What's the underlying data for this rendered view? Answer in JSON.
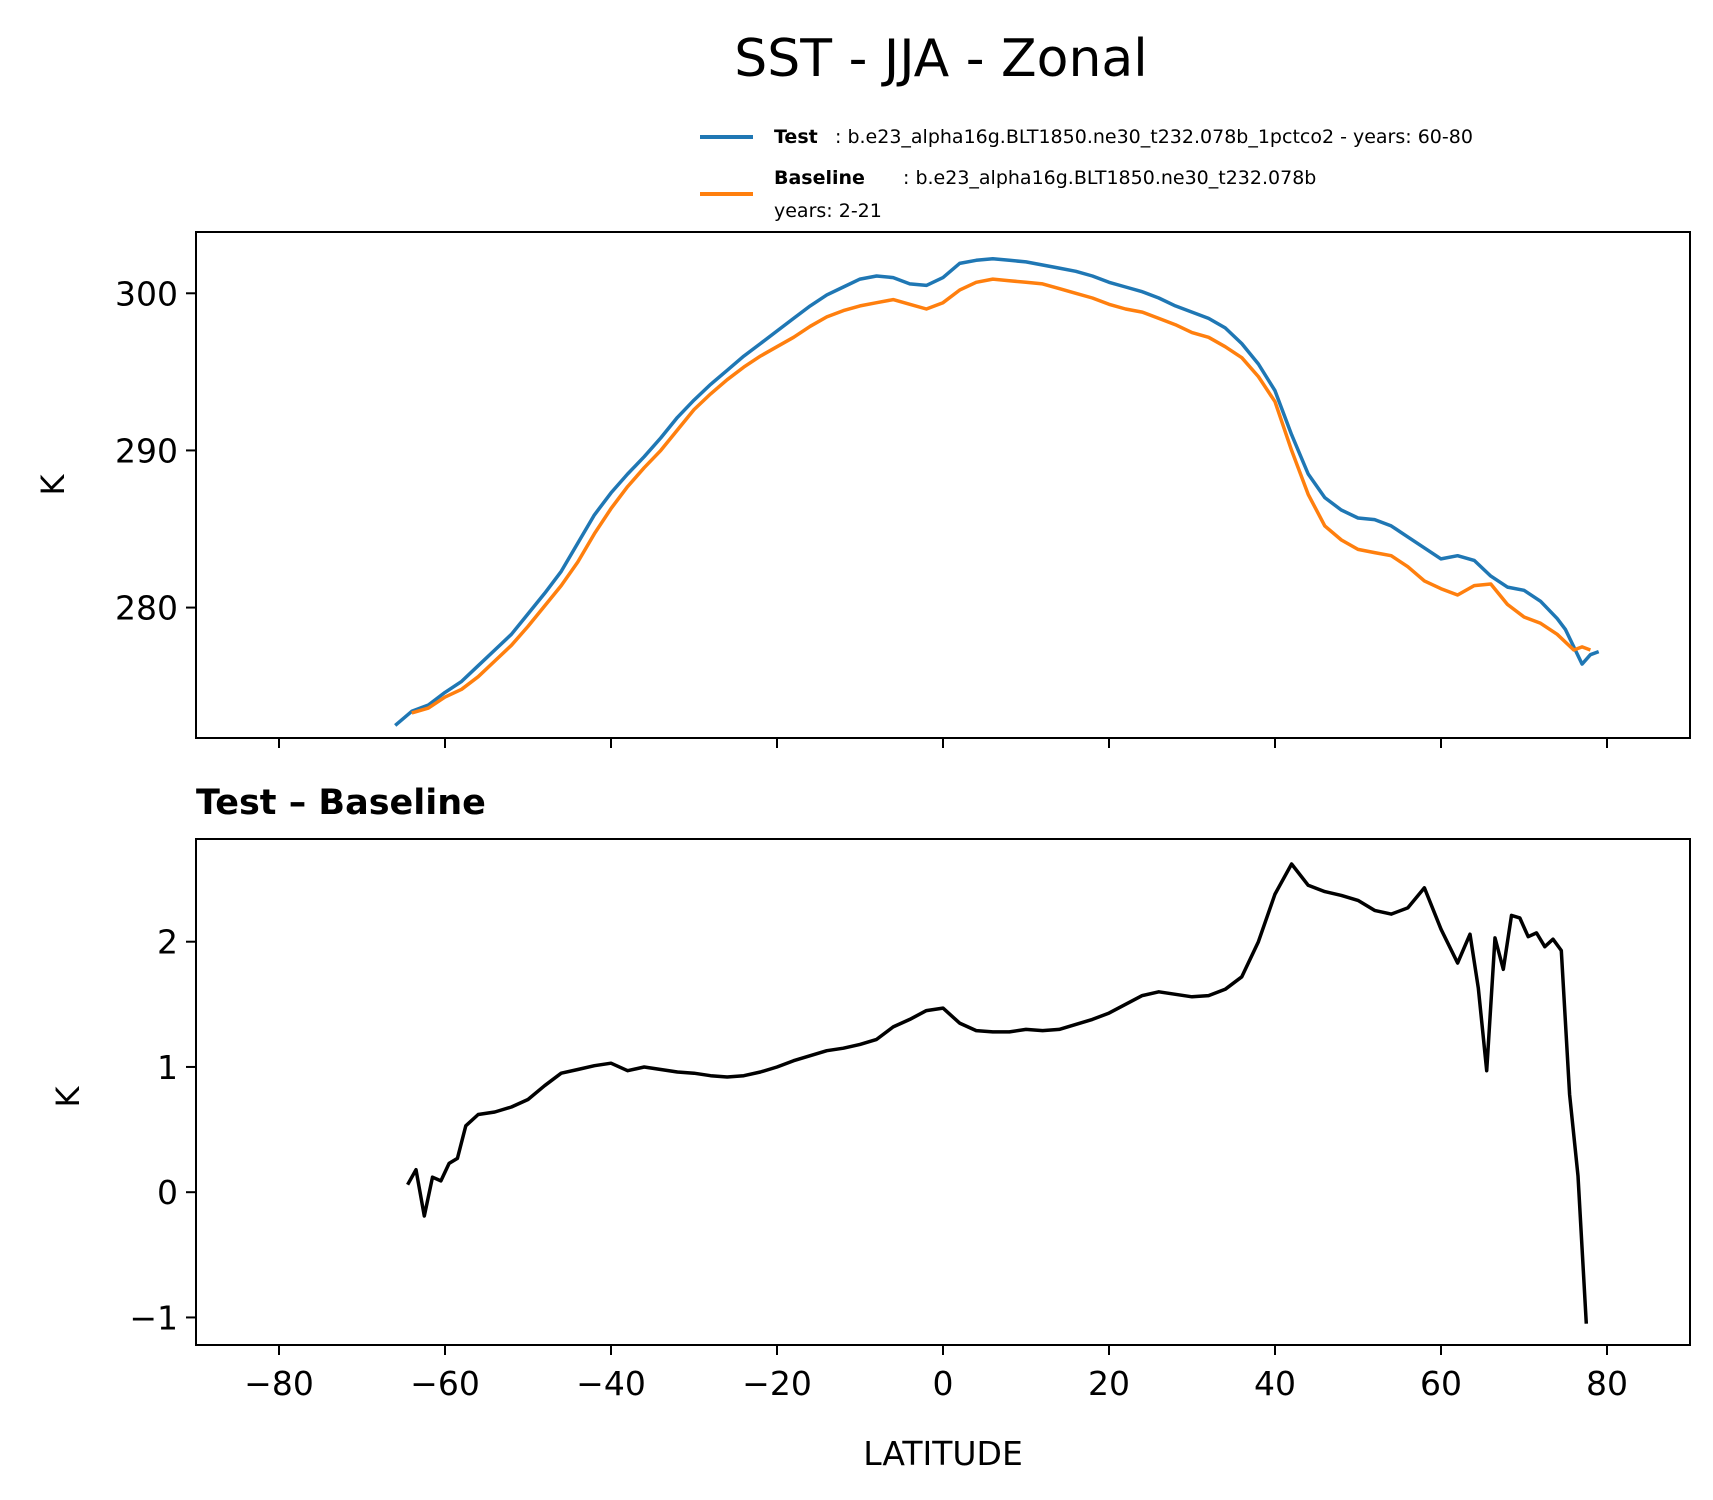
{
  "figure_title": "SST - JJA - Zonal",
  "colors": {
    "test": "#1f77b4",
    "baseline": "#ff7f0e",
    "diff": "#000000",
    "axis": "#000000"
  },
  "legend": {
    "test_label": "Test",
    "test_text": ": b.e23_alpha16g.BLT1850.ne30_t232.078b_1pctco2 - years: 60-80",
    "baseline_label": "Baseline",
    "baseline_text": ": b.e23_alpha16g.BLT1850.ne30_t232.078b",
    "baseline_years": "years: 2-21"
  },
  "chart_data": [
    {
      "type": "line",
      "title": "",
      "xlabel": "",
      "ylabel": "K",
      "xlim": [
        -90,
        90
      ],
      "ylim": [
        271.7,
        303.9
      ],
      "xticks": [
        -80,
        -60,
        -40,
        -20,
        0,
        20,
        40,
        60,
        80
      ],
      "yticks": [
        280,
        290,
        300
      ],
      "ytick_labels": [
        "280",
        "290",
        "300"
      ],
      "series": [
        {
          "name": "Test",
          "x": [
            -66,
            -64,
            -62,
            -60,
            -58,
            -56,
            -54,
            -52,
            -50,
            -48,
            -46,
            -44,
            -42,
            -40,
            -38,
            -36,
            -34,
            -32,
            -30,
            -28,
            -26,
            -24,
            -22,
            -20,
            -18,
            -16,
            -14,
            -12,
            -10,
            -8,
            -6,
            -4,
            -2,
            0,
            2,
            4,
            6,
            8,
            10,
            12,
            14,
            16,
            18,
            20,
            22,
            24,
            26,
            28,
            30,
            32,
            34,
            36,
            38,
            40,
            42,
            44,
            46,
            48,
            50,
            52,
            54,
            56,
            58,
            60,
            62,
            64,
            66,
            68,
            70,
            72,
            74,
            75,
            76,
            77,
            78,
            79
          ],
          "y": [
            272.5,
            273.4,
            273.8,
            274.6,
            275.3,
            276.3,
            277.3,
            278.3,
            279.6,
            280.9,
            282.3,
            284.1,
            285.9,
            287.3,
            288.5,
            289.6,
            290.8,
            292.1,
            293.2,
            294.2,
            295.1,
            296.0,
            296.8,
            297.6,
            298.4,
            299.2,
            299.9,
            300.4,
            300.9,
            301.1,
            301.0,
            300.6,
            300.5,
            301.0,
            301.9,
            302.1,
            302.2,
            302.1,
            302.0,
            301.8,
            301.6,
            301.4,
            301.1,
            300.7,
            300.4,
            300.1,
            299.7,
            299.2,
            298.8,
            298.4,
            297.8,
            296.8,
            295.5,
            293.8,
            291.0,
            288.5,
            287.0,
            286.2,
            285.7,
            285.6,
            285.2,
            284.5,
            283.8,
            283.1,
            283.3,
            283.0,
            282.0,
            281.3,
            281.1,
            280.4,
            279.3,
            278.6,
            277.5,
            276.4,
            277.0,
            277.2
          ]
        },
        {
          "name": "Baseline",
          "x": [
            -64,
            -62,
            -60,
            -58,
            -56,
            -54,
            -52,
            -50,
            -48,
            -46,
            -44,
            -42,
            -40,
            -38,
            -36,
            -34,
            -32,
            -30,
            -28,
            -26,
            -24,
            -22,
            -20,
            -18,
            -16,
            -14,
            -12,
            -10,
            -8,
            -6,
            -4,
            -2,
            0,
            2,
            4,
            6,
            8,
            10,
            12,
            14,
            16,
            18,
            20,
            22,
            24,
            26,
            28,
            30,
            32,
            34,
            36,
            38,
            40,
            42,
            44,
            46,
            48,
            50,
            52,
            54,
            56,
            58,
            60,
            62,
            64,
            66,
            68,
            70,
            72,
            74,
            76,
            77,
            78
          ],
          "y": [
            273.3,
            273.6,
            274.3,
            274.8,
            275.6,
            276.6,
            277.6,
            278.8,
            280.1,
            281.4,
            282.9,
            284.7,
            286.3,
            287.7,
            288.9,
            290.0,
            291.3,
            292.6,
            293.6,
            294.5,
            295.3,
            296.0,
            296.6,
            297.2,
            297.9,
            298.5,
            298.9,
            299.2,
            299.4,
            299.6,
            299.3,
            299.0,
            299.4,
            300.2,
            300.7,
            300.9,
            300.8,
            300.7,
            300.6,
            300.3,
            300.0,
            299.7,
            299.3,
            299.0,
            298.8,
            298.4,
            298.0,
            297.5,
            297.2,
            296.6,
            295.9,
            294.7,
            293.1,
            290.0,
            287.2,
            285.2,
            284.3,
            283.7,
            283.5,
            283.3,
            282.6,
            281.7,
            281.2,
            280.8,
            281.4,
            281.5,
            280.2,
            279.4,
            279.0,
            278.3,
            277.3,
            277.5,
            277.3
          ]
        }
      ],
      "legend": "top-right"
    },
    {
      "type": "line",
      "title": "Test – Baseline",
      "xlabel": "LATITUDE",
      "ylabel": "K",
      "xlim": [
        -90,
        90
      ],
      "ylim": [
        -1.22,
        2.82
      ],
      "xticks": [
        -80,
        -60,
        -40,
        -20,
        0,
        20,
        40,
        60,
        80
      ],
      "xtick_labels": [
        "−80",
        "−60",
        "−40",
        "−20",
        "0",
        "20",
        "40",
        "60",
        "80"
      ],
      "yticks": [
        -1,
        0,
        1,
        2
      ],
      "ytick_labels": [
        "−1",
        "0",
        "1",
        "2"
      ],
      "series": [
        {
          "name": "Test - Baseline",
          "x": [
            -64.5,
            -63.5,
            -62.5,
            -61.5,
            -60.5,
            -59.5,
            -58.5,
            -57.5,
            -56,
            -54,
            -52,
            -50,
            -48,
            -46,
            -44,
            -42,
            -40,
            -38,
            -36,
            -34,
            -32,
            -30,
            -28,
            -26,
            -24,
            -22,
            -20,
            -18,
            -16,
            -14,
            -12,
            -10,
            -8,
            -6,
            -4,
            -2,
            0,
            2,
            4,
            6,
            8,
            10,
            12,
            14,
            16,
            18,
            20,
            22,
            24,
            26,
            28,
            30,
            32,
            34,
            36,
            38,
            40,
            42,
            44,
            46,
            48,
            50,
            52,
            54,
            56,
            58,
            60,
            62,
            63.5,
            64.5,
            65.5,
            66.5,
            67.5,
            68.5,
            69.5,
            70.5,
            71.5,
            72.5,
            73.5,
            74.5,
            75.5,
            76.5,
            77.5
          ],
          "y": [
            0.06,
            0.18,
            -0.19,
            0.12,
            0.09,
            0.23,
            0.27,
            0.53,
            0.62,
            0.64,
            0.68,
            0.74,
            0.85,
            0.95,
            0.98,
            1.01,
            1.03,
            0.97,
            1.0,
            0.98,
            0.96,
            0.95,
            0.93,
            0.92,
            0.93,
            0.96,
            1.0,
            1.05,
            1.09,
            1.13,
            1.15,
            1.18,
            1.22,
            1.32,
            1.38,
            1.45,
            1.47,
            1.35,
            1.29,
            1.28,
            1.28,
            1.3,
            1.29,
            1.3,
            1.34,
            1.38,
            1.43,
            1.5,
            1.57,
            1.6,
            1.58,
            1.56,
            1.57,
            1.62,
            1.72,
            2.0,
            2.38,
            2.62,
            2.45,
            2.4,
            2.37,
            2.33,
            2.25,
            2.22,
            2.27,
            2.43,
            2.1,
            1.83,
            2.06,
            1.63,
            0.97,
            2.03,
            1.78,
            2.21,
            2.19,
            2.04,
            2.07,
            1.96,
            2.02,
            1.93,
            0.78,
            0.13,
            -1.05
          ]
        }
      ]
    }
  ]
}
